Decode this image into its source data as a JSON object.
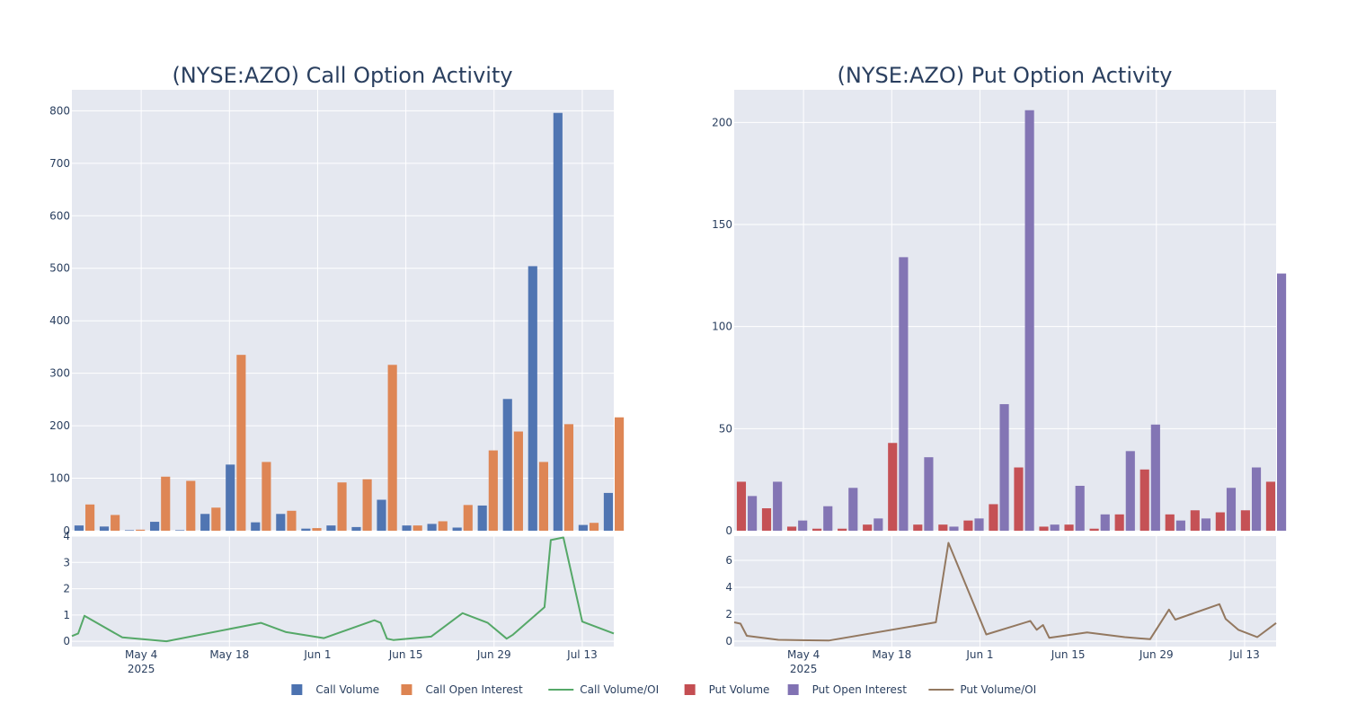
{
  "chart_data": [
    {
      "type": "bar",
      "title": "(NYSE:AZO) Call Option Activity",
      "x_axis_type": "date",
      "x_tick_labels": [
        {
          "date": "2025-05-04",
          "label": "May 4",
          "sublabel": "2025"
        },
        {
          "date": "2025-05-18",
          "label": "May 18"
        },
        {
          "date": "2025-06-01",
          "label": "Jun 1"
        },
        {
          "date": "2025-06-15",
          "label": "Jun 15"
        },
        {
          "date": "2025-06-29",
          "label": "Jun 29"
        },
        {
          "date": "2025-07-13",
          "label": "Jul 13"
        }
      ],
      "x_range": [
        "2025-04-23",
        "2025-07-18"
      ],
      "bar_panel": {
        "y_range": [
          0,
          840
        ],
        "y_ticks": [
          0,
          100,
          200,
          300,
          400,
          500,
          600,
          700,
          800
        ],
        "dates": [
          "2025-04-25",
          "2025-04-29",
          "2025-05-03",
          "2025-05-07",
          "2025-05-11",
          "2025-05-15",
          "2025-05-19",
          "2025-05-23",
          "2025-05-27",
          "2025-05-31",
          "2025-06-04",
          "2025-06-08",
          "2025-06-12",
          "2025-06-16",
          "2025-06-20",
          "2025-06-24",
          "2025-06-28",
          "2025-07-02",
          "2025-07-06",
          "2025-07-10",
          "2025-07-14",
          "2025-07-18"
        ],
        "series": [
          {
            "name": "Call Volume",
            "color": "#4c72b0",
            "values": [
              10,
              8,
              1,
              17,
              1,
              32,
              126,
              16,
              32,
              4,
              10,
              7,
              59,
              10,
              13,
              6,
              48,
              251,
              504,
              796,
              11,
              72
            ]
          },
          {
            "name": "Call Open Interest",
            "color": "#dd8452",
            "values": [
              50,
              30,
              2,
              103,
              95,
              44,
              335,
              131,
              38,
              5,
              92,
              98,
              316,
              10,
              18,
              49,
              153,
              189,
              131,
              203,
              15,
              216
            ]
          }
        ]
      },
      "ratio_panel": {
        "y_range": [
          -0.2,
          4
        ],
        "y_ticks": [
          0,
          1,
          2,
          3,
          4
        ],
        "series": {
          "name": "Call Volume/OI",
          "color": "#55a868",
          "points": [
            {
              "x": "2025-04-23",
              "y": 0.2
            },
            {
              "x": "2025-04-24",
              "y": 0.3
            },
            {
              "x": "2025-04-25",
              "y": 0.97
            },
            {
              "x": "2025-05-01",
              "y": 0.15
            },
            {
              "x": "2025-05-08",
              "y": 0
            },
            {
              "x": "2025-05-23",
              "y": 0.7
            },
            {
              "x": "2025-05-27",
              "y": 0.35
            },
            {
              "x": "2025-06-02",
              "y": 0.12
            },
            {
              "x": "2025-06-10",
              "y": 0.8
            },
            {
              "x": "2025-06-11",
              "y": 0.7
            },
            {
              "x": "2025-06-12",
              "y": 0.1
            },
            {
              "x": "2025-06-13",
              "y": 0.05
            },
            {
              "x": "2025-06-19",
              "y": 0.18
            },
            {
              "x": "2025-06-24",
              "y": 1.07
            },
            {
              "x": "2025-06-28",
              "y": 0.7
            },
            {
              "x": "2025-07-01",
              "y": 0.1
            },
            {
              "x": "2025-07-02",
              "y": 0.25
            },
            {
              "x": "2025-07-07",
              "y": 1.3
            },
            {
              "x": "2025-07-08",
              "y": 3.85
            },
            {
              "x": "2025-07-10",
              "y": 3.95
            },
            {
              "x": "2025-07-13",
              "y": 0.75
            },
            {
              "x": "2025-07-18",
              "y": 0.3
            }
          ]
        }
      }
    },
    {
      "type": "bar",
      "title": "(NYSE:AZO) Put Option Activity",
      "x_axis_type": "date",
      "x_tick_labels": [
        {
          "date": "2025-05-04",
          "label": "May 4",
          "sublabel": "2025"
        },
        {
          "date": "2025-05-18",
          "label": "May 18"
        },
        {
          "date": "2025-06-01",
          "label": "Jun 1"
        },
        {
          "date": "2025-06-15",
          "label": "Jun 15"
        },
        {
          "date": "2025-06-29",
          "label": "Jun 29"
        },
        {
          "date": "2025-07-13",
          "label": "Jul 13"
        }
      ],
      "x_range": [
        "2025-04-23",
        "2025-07-18"
      ],
      "bar_panel": {
        "y_range": [
          0,
          216
        ],
        "y_ticks": [
          0,
          50,
          100,
          150,
          200
        ],
        "dates": [
          "2025-04-25",
          "2025-04-29",
          "2025-05-03",
          "2025-05-07",
          "2025-05-11",
          "2025-05-15",
          "2025-05-19",
          "2025-05-23",
          "2025-05-27",
          "2025-05-31",
          "2025-06-04",
          "2025-06-08",
          "2025-06-12",
          "2025-06-16",
          "2025-06-20",
          "2025-06-24",
          "2025-06-28",
          "2025-07-02",
          "2025-07-06",
          "2025-07-10",
          "2025-07-14",
          "2025-07-18"
        ],
        "series": [
          {
            "name": "Put Volume",
            "color": "#c44e52",
            "values": [
              24,
              11,
              2,
              1,
              1,
              3,
              43,
              3,
              3,
              5,
              13,
              31,
              2,
              3,
              1,
              8,
              30,
              8,
              10,
              9,
              10,
              24
            ]
          },
          {
            "name": "Put Open Interest",
            "color": "#8172b3",
            "values": [
              17,
              24,
              5,
              12,
              21,
              6,
              134,
              36,
              2,
              6,
              62,
              206,
              3,
              22,
              8,
              39,
              52,
              5,
              6,
              21,
              31,
              126
            ]
          }
        ]
      },
      "ratio_panel": {
        "y_range": [
          -0.4,
          7.8
        ],
        "y_ticks": [
          0,
          2,
          4,
          6
        ],
        "series": {
          "name": "Put Volume/OI",
          "color": "#937860",
          "points": [
            {
              "x": "2025-04-23",
              "y": 1.4
            },
            {
              "x": "2025-04-24",
              "y": 1.3
            },
            {
              "x": "2025-04-25",
              "y": 0.4
            },
            {
              "x": "2025-04-30",
              "y": 0.1
            },
            {
              "x": "2025-05-08",
              "y": 0.05
            },
            {
              "x": "2025-05-25",
              "y": 1.4
            },
            {
              "x": "2025-05-27",
              "y": 7.3
            },
            {
              "x": "2025-06-02",
              "y": 0.5
            },
            {
              "x": "2025-06-09",
              "y": 1.5
            },
            {
              "x": "2025-06-10",
              "y": 0.85
            },
            {
              "x": "2025-06-11",
              "y": 1.2
            },
            {
              "x": "2025-06-12",
              "y": 0.25
            },
            {
              "x": "2025-06-18",
              "y": 0.65
            },
            {
              "x": "2025-06-24",
              "y": 0.3
            },
            {
              "x": "2025-06-28",
              "y": 0.15
            },
            {
              "x": "2025-07-01",
              "y": 2.35
            },
            {
              "x": "2025-07-02",
              "y": 1.6
            },
            {
              "x": "2025-07-09",
              "y": 2.75
            },
            {
              "x": "2025-07-10",
              "y": 1.65
            },
            {
              "x": "2025-07-12",
              "y": 0.85
            },
            {
              "x": "2025-07-15",
              "y": 0.3
            },
            {
              "x": "2025-07-18",
              "y": 1.35
            }
          ]
        }
      }
    }
  ],
  "legend": {
    "placement": "bottom-center",
    "items": [
      {
        "label": "Call Volume",
        "kind": "square",
        "color": "#4c72b0"
      },
      {
        "label": "Call Open Interest",
        "kind": "square",
        "color": "#dd8452"
      },
      {
        "label": "Call Volume/OI",
        "kind": "line",
        "color": "#55a868"
      },
      {
        "label": "Put Volume",
        "kind": "square",
        "color": "#c44e52"
      },
      {
        "label": "Put Open Interest",
        "kind": "square",
        "color": "#8172b3"
      },
      {
        "label": "Put Volume/OI",
        "kind": "line",
        "color": "#937860"
      }
    ]
  },
  "style": {
    "plot_background": "#e5e8f0",
    "grid_color": "#ffffff",
    "text_color": "#2a3f5f"
  }
}
